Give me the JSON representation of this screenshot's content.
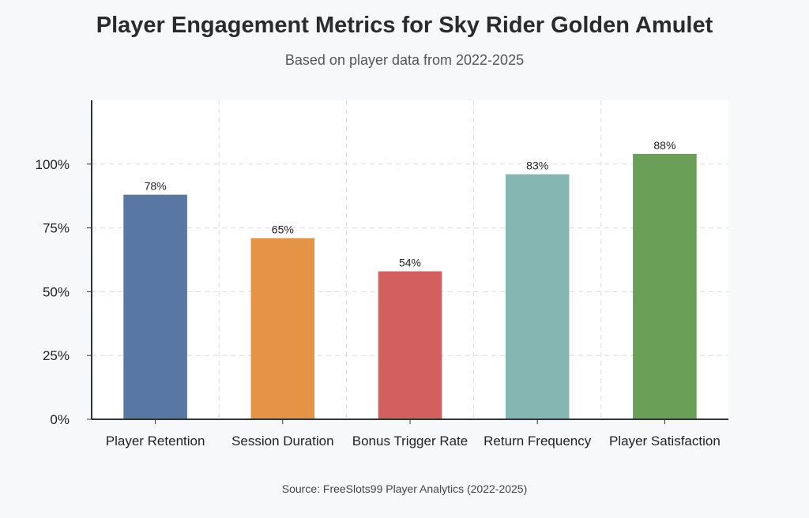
{
  "chart_data": {
    "type": "bar",
    "title": "Player Engagement Metrics for Sky Rider Golden Amulet",
    "subtitle": "Based on player data from 2022-2025",
    "source": "Source: FreeSlots99 Player Analytics (2022-2025)",
    "categories": [
      "Player Retention",
      "Session Duration",
      "Bonus Trigger Rate",
      "Return Frequency",
      "Player Satisfaction"
    ],
    "values": [
      78,
      65,
      54,
      83,
      88
    ],
    "display_values": [
      88,
      71,
      58,
      96,
      104
    ],
    "data_labels": [
      "78%",
      "65%",
      "54%",
      "83%",
      "88%"
    ],
    "colors": [
      "#5878a3",
      "#e59445",
      "#d45f5f",
      "#85b6b2",
      "#6a9f58"
    ],
    "ytick_values": [
      0,
      25,
      50,
      75,
      100
    ],
    "ytick_labels": [
      "0%",
      "25%",
      "50%",
      "75%",
      "100%"
    ],
    "ylim": [
      0,
      125
    ],
    "grid": true,
    "xlabel": "",
    "ylabel": ""
  }
}
